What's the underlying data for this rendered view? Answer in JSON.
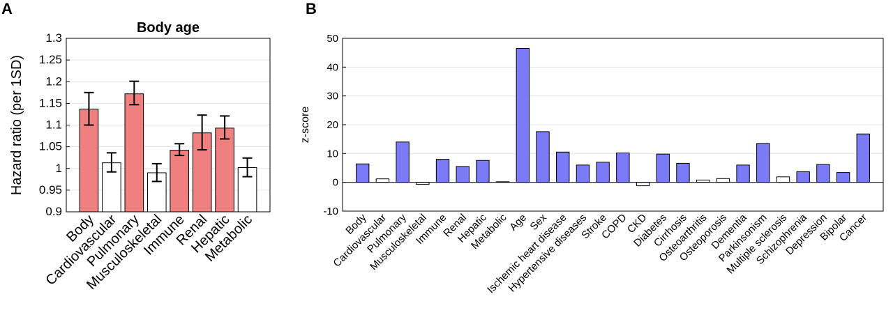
{
  "chart_data": [
    {
      "panel": "A",
      "type": "bar",
      "title": "Body age",
      "xlabel": "",
      "ylabel": "Hazard ratio (per 1SD)",
      "ylim": [
        0.9,
        1.3
      ],
      "yticks": [
        "0.9",
        "0.95",
        "1",
        "1.05",
        "1.1",
        "1.15",
        "1.2",
        "1.25",
        "1.3"
      ],
      "grid": true,
      "categories": [
        "Body",
        "Cardiovascular",
        "Pulmonary",
        "Musculoskeletal",
        "Immune",
        "Renal",
        "Hepatic",
        "Metabolic"
      ],
      "values": [
        1.137,
        1.013,
        1.172,
        0.99,
        1.042,
        1.082,
        1.093,
        1.002
      ],
      "ci_lower": [
        1.1,
        0.992,
        1.147,
        0.97,
        1.03,
        1.043,
        1.068,
        0.981
      ],
      "ci_upper": [
        1.175,
        1.036,
        1.201,
        1.011,
        1.057,
        1.123,
        1.121,
        1.024
      ],
      "significant": [
        true,
        false,
        true,
        false,
        true,
        true,
        true,
        false
      ],
      "colors": {
        "significant": "#f08080",
        "not_significant": "#ffffff",
        "edge": "#000000"
      }
    },
    {
      "panel": "B",
      "type": "bar",
      "title": "",
      "xlabel": "",
      "ylabel": "z-score",
      "ylim": [
        -10,
        50
      ],
      "yticks": [
        "-10",
        "0",
        "10",
        "20",
        "30",
        "40",
        "50"
      ],
      "grid": true,
      "categories": [
        "Body",
        "Cardiovascular",
        "Pulmonary",
        "Musculoskeletal",
        "Immune",
        "Renal",
        "Hepatic",
        "Metabolic",
        "Age",
        "Sex",
        "Ischemic heart disease",
        "Hypertensive diseases",
        "Stroke",
        "COPD",
        "CKD",
        "Diabetes",
        "Cirrhosis",
        "Osteoarthritis",
        "Osteoporosis",
        "Dementia",
        "Parkinsonism",
        "Multiple sclerosis",
        "Schizophrenia",
        "Depression",
        "Bipolar",
        "Cancer"
      ],
      "values": [
        6.4,
        1.2,
        14.0,
        -0.7,
        8.0,
        5.5,
        7.6,
        0.2,
        46.5,
        17.6,
        10.5,
        6.0,
        7.0,
        10.2,
        -1.2,
        9.8,
        6.6,
        0.8,
        1.3,
        6.0,
        13.5,
        1.9,
        3.7,
        6.2,
        3.4,
        16.8
      ],
      "significant": [
        true,
        false,
        true,
        false,
        true,
        true,
        true,
        false,
        true,
        true,
        true,
        true,
        true,
        true,
        false,
        true,
        true,
        false,
        false,
        true,
        true,
        false,
        true,
        true,
        true,
        true
      ],
      "colors": {
        "significant": "#7b7bf7",
        "not_significant": "#ffffff",
        "edge": "#000000"
      }
    }
  ],
  "panel_letters": {
    "a": "A",
    "b": "B"
  }
}
